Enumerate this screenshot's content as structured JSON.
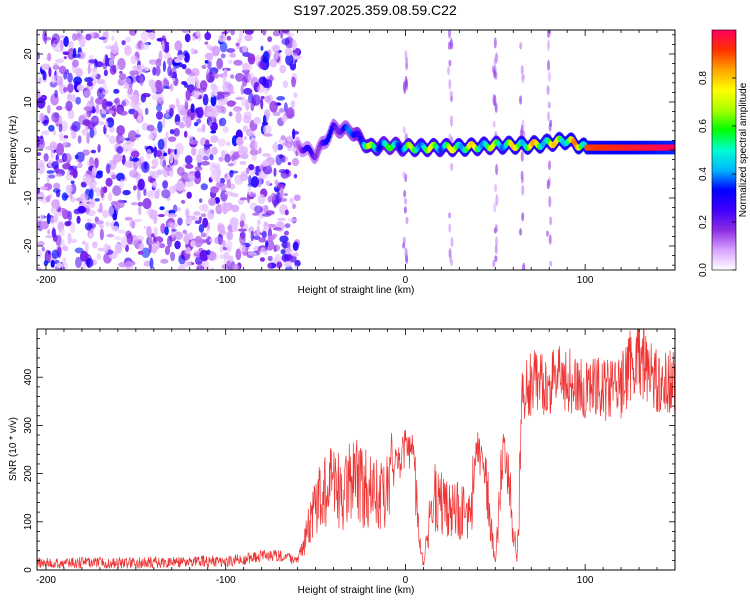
{
  "title": "S197.2025.359.08.59.C22",
  "chart_data": [
    {
      "type": "heatmap",
      "xlabel": "Height of straight line (km)",
      "ylabel": "Frequency (Hz)",
      "xlim": [
        -205,
        150
      ],
      "ylim": [
        -25,
        25
      ],
      "x_ticks": [
        -200,
        -100,
        0,
        100
      ],
      "y_ticks": [
        -20,
        -10,
        0,
        10,
        20
      ],
      "grid": false,
      "colorbar": {
        "label": "Normalized spectral amplitude",
        "range": [
          0,
          1
        ],
        "ticks": [
          0.0,
          0.2,
          0.4,
          0.6,
          0.8
        ],
        "colormap": [
          "#ffffff",
          "#d9a3ff",
          "#8a2be2",
          "#3f00ff",
          "#0000ff",
          "#00b7ff",
          "#00ffd0",
          "#00ff00",
          "#aaff00",
          "#ffff00",
          "#ffa500",
          "#ff3000",
          "#ff0060"
        ]
      },
      "noise_region": {
        "x_range": [
          -205,
          -60
        ],
        "y_range": [
          -25,
          25
        ],
        "amplitude": [
          0.05,
          0.35
        ]
      },
      "signal_track": [
        {
          "x": -60,
          "y": 1.0,
          "amplitude": 0.25
        },
        {
          "x": -50,
          "y": -1.0,
          "amplitude": 0.3
        },
        {
          "x": -40,
          "y": 4.5,
          "amplitude": 0.35
        },
        {
          "x": -30,
          "y": 4.0,
          "amplitude": 0.4
        },
        {
          "x": -20,
          "y": 0.5,
          "amplitude": 0.7
        },
        {
          "x": -10,
          "y": 1.0,
          "amplitude": 0.6
        },
        {
          "x": 0,
          "y": 0.5,
          "amplitude": 0.65
        },
        {
          "x": 10,
          "y": 0.5,
          "amplitude": 0.75
        },
        {
          "x": 20,
          "y": 0.5,
          "amplitude": 0.7
        },
        {
          "x": 30,
          "y": 0.5,
          "amplitude": 0.8
        },
        {
          "x": 40,
          "y": 0.7,
          "amplitude": 0.8
        },
        {
          "x": 50,
          "y": 1.0,
          "amplitude": 0.7
        },
        {
          "x": 60,
          "y": 1.0,
          "amplitude": 0.8
        },
        {
          "x": 70,
          "y": 1.0,
          "amplitude": 0.85
        },
        {
          "x": 80,
          "y": 1.5,
          "amplitude": 0.8
        },
        {
          "x": 90,
          "y": 2.0,
          "amplitude": 0.85
        },
        {
          "x": 100,
          "y": 0.5,
          "amplitude": 0.9
        },
        {
          "x": 150,
          "y": 0.5,
          "amplitude": 1.0
        }
      ]
    },
    {
      "type": "line",
      "xlabel": "Height of straight line (km)",
      "ylabel": "SNR (10 * v/v)",
      "xlim": [
        -205,
        150
      ],
      "ylim": [
        0,
        500
      ],
      "x_ticks": [
        -200,
        -100,
        0,
        100
      ],
      "y_ticks": [
        0,
        100,
        200,
        300,
        400
      ],
      "grid": false,
      "series": [
        {
          "color": "#ee3333",
          "points": [
            [
              -205,
              15
            ],
            [
              -180,
              15
            ],
            [
              -150,
              15
            ],
            [
              -120,
              18
            ],
            [
              -100,
              18
            ],
            [
              -90,
              22
            ],
            [
              -80,
              30
            ],
            [
              -70,
              30
            ],
            [
              -60,
              20
            ],
            [
              -48,
              150
            ],
            [
              -40,
              180
            ],
            [
              -35,
              150
            ],
            [
              -30,
              200
            ],
            [
              -25,
              170
            ],
            [
              -20,
              170
            ],
            [
              -12,
              150
            ],
            [
              -5,
              220
            ],
            [
              0,
              250
            ],
            [
              5,
              250
            ],
            [
              7,
              80
            ],
            [
              10,
              10
            ],
            [
              15,
              150
            ],
            [
              20,
              140
            ],
            [
              25,
              130
            ],
            [
              30,
              120
            ],
            [
              35,
              110
            ],
            [
              40,
              250
            ],
            [
              45,
              200
            ],
            [
              50,
              10
            ],
            [
              55,
              270
            ],
            [
              62,
              20
            ],
            [
              65,
              360
            ],
            [
              70,
              390
            ],
            [
              75,
              380
            ],
            [
              80,
              390
            ],
            [
              85,
              395
            ],
            [
              90,
              400
            ],
            [
              95,
              380
            ],
            [
              100,
              370
            ],
            [
              110,
              375
            ],
            [
              120,
              380
            ],
            [
              128,
              450
            ],
            [
              135,
              420
            ],
            [
              140,
              395
            ],
            [
              150,
              390
            ]
          ]
        }
      ]
    }
  ]
}
